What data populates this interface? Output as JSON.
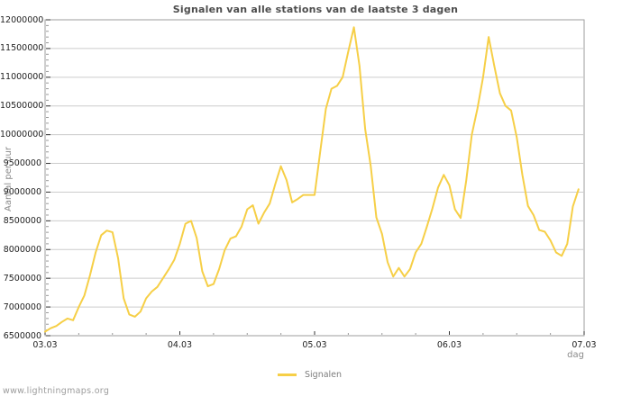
{
  "watermark": "www.lightningmaps.org",
  "colors": {
    "line": "#f6cf47",
    "grid": "#cccccc",
    "border": "#9e9e9e",
    "major_tick": "#333333",
    "minor_tick": "#999999",
    "tick_text": "#1f1f1f",
    "title_text": "#4d4d4d",
    "muted_text": "#8a8a8a"
  },
  "chart_data": {
    "type": "line",
    "title": "Signalen van alle stations van de laatste 3 dagen",
    "xlabel": "dag",
    "ylabel": "Aantal per uur",
    "x_tick_labels": [
      "03.03",
      "04.03",
      "05.03",
      "06.03",
      "07.03"
    ],
    "x_unit": "hours since 03.03 00:00, one point per hour",
    "ylim": [
      6500000,
      12000000
    ],
    "y_tick_step": 500000,
    "y_minor_tick_step": 100000,
    "x_minor_tick_hours": 6,
    "grid": "horizontal-major",
    "legend_position": "bottom-center",
    "legend_entries": [
      {
        "label": "Signalen",
        "color": "#f6cf47"
      }
    ],
    "series": [
      {
        "name": "Signalen",
        "color": "#f6cf47",
        "values": [
          6570000,
          6630000,
          6670000,
          6740000,
          6800000,
          6770000,
          7000000,
          7200000,
          7550000,
          7950000,
          8250000,
          8330000,
          8300000,
          7850000,
          7150000,
          6870000,
          6830000,
          6920000,
          7150000,
          7270000,
          7350000,
          7500000,
          7650000,
          7820000,
          8100000,
          8450000,
          8500000,
          8200000,
          7620000,
          7360000,
          7400000,
          7660000,
          7990000,
          8190000,
          8230000,
          8400000,
          8700000,
          8770000,
          8450000,
          8640000,
          8800000,
          9140000,
          9450000,
          9210000,
          8820000,
          8880000,
          8950000,
          8950000,
          8950000,
          9700000,
          10450000,
          10800000,
          10850000,
          11000000,
          11450000,
          11870000,
          11200000,
          10100000,
          9450000,
          8560000,
          8270000,
          7780000,
          7530000,
          7680000,
          7530000,
          7660000,
          7950000,
          8100000,
          8400000,
          8720000,
          9080000,
          9300000,
          9120000,
          8700000,
          8550000,
          9200000,
          10000000,
          10450000,
          11000000,
          11700000,
          11200000,
          10720000,
          10500000,
          10420000,
          9950000,
          9300000,
          8760000,
          8600000,
          8340000,
          8310000,
          8160000,
          7950000,
          7890000,
          8100000,
          8750000,
          9050000
        ]
      }
    ]
  }
}
